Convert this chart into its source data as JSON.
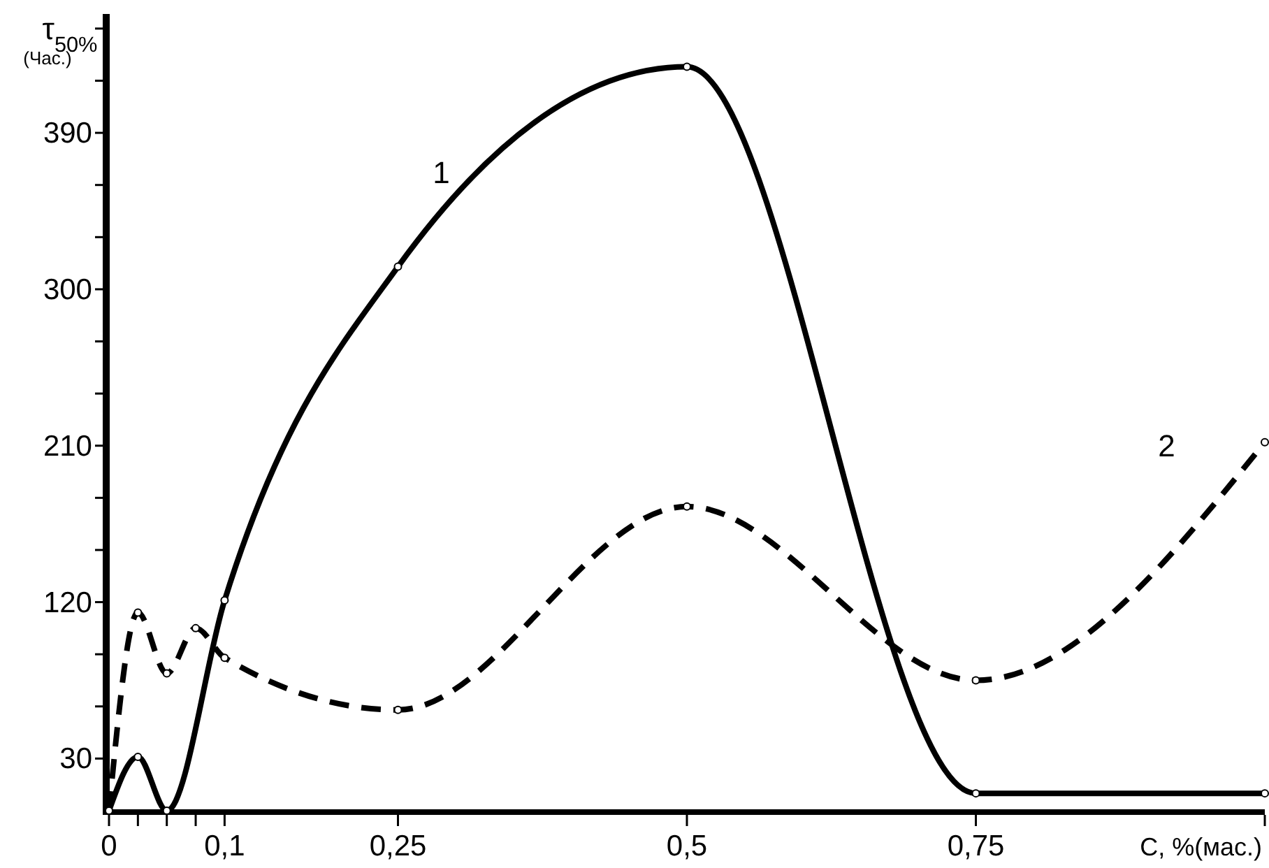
{
  "chart_data": {
    "type": "line",
    "xlabel": "C, %(мас.)",
    "ylabel": "τ$_{50%}$ (Час.)",
    "xlim": [
      0,
      1
    ],
    "ylim": [
      0,
      460
    ],
    "xticks": [
      {
        "value": 0,
        "label": "0"
      },
      {
        "value": 0.025,
        "label": null
      },
      {
        "value": 0.05,
        "label": null
      },
      {
        "value": 0.075,
        "label": null
      },
      {
        "value": 0.1,
        "label": "0,1"
      },
      {
        "value": 0.25,
        "label": "0,25"
      },
      {
        "value": 0.5,
        "label": "0,5"
      },
      {
        "value": 0.75,
        "label": "0,75"
      },
      {
        "value": 1,
        "label": null
      }
    ],
    "yticks": [
      30,
      {
        "value": 60,
        "label": null
      },
      {
        "value": 90,
        "label": null
      },
      120,
      {
        "value": 150,
        "label": null
      },
      {
        "value": 180,
        "label": null
      },
      210,
      {
        "value": 240,
        "label": null
      },
      {
        "value": 270,
        "label": null
      },
      300,
      {
        "value": 330,
        "label": null
      },
      {
        "value": 360,
        "label": null
      },
      390,
      {
        "value": 420,
        "label": null
      },
      {
        "value": 450,
        "label": null
      }
    ],
    "grid": false,
    "marker": "circle",
    "series": [
      {
        "name": "1",
        "color": "#000000",
        "line_style": "solid",
        "x": [
          0,
          0.025,
          0.05,
          0.1,
          0.25,
          0.5,
          0.75,
          1
        ],
        "values": [
          0,
          31,
          0,
          121,
          313,
          428,
          10,
          10
        ]
      },
      {
        "name": "2",
        "color": "#000000",
        "line_style": "dashed",
        "x": [
          0,
          0.025,
          0.05,
          0.075,
          0.1,
          0.25,
          0.5,
          0.75,
          1
        ],
        "values": [
          0,
          114,
          79,
          105,
          88,
          58,
          175,
          75,
          212
        ]
      }
    ]
  }
}
